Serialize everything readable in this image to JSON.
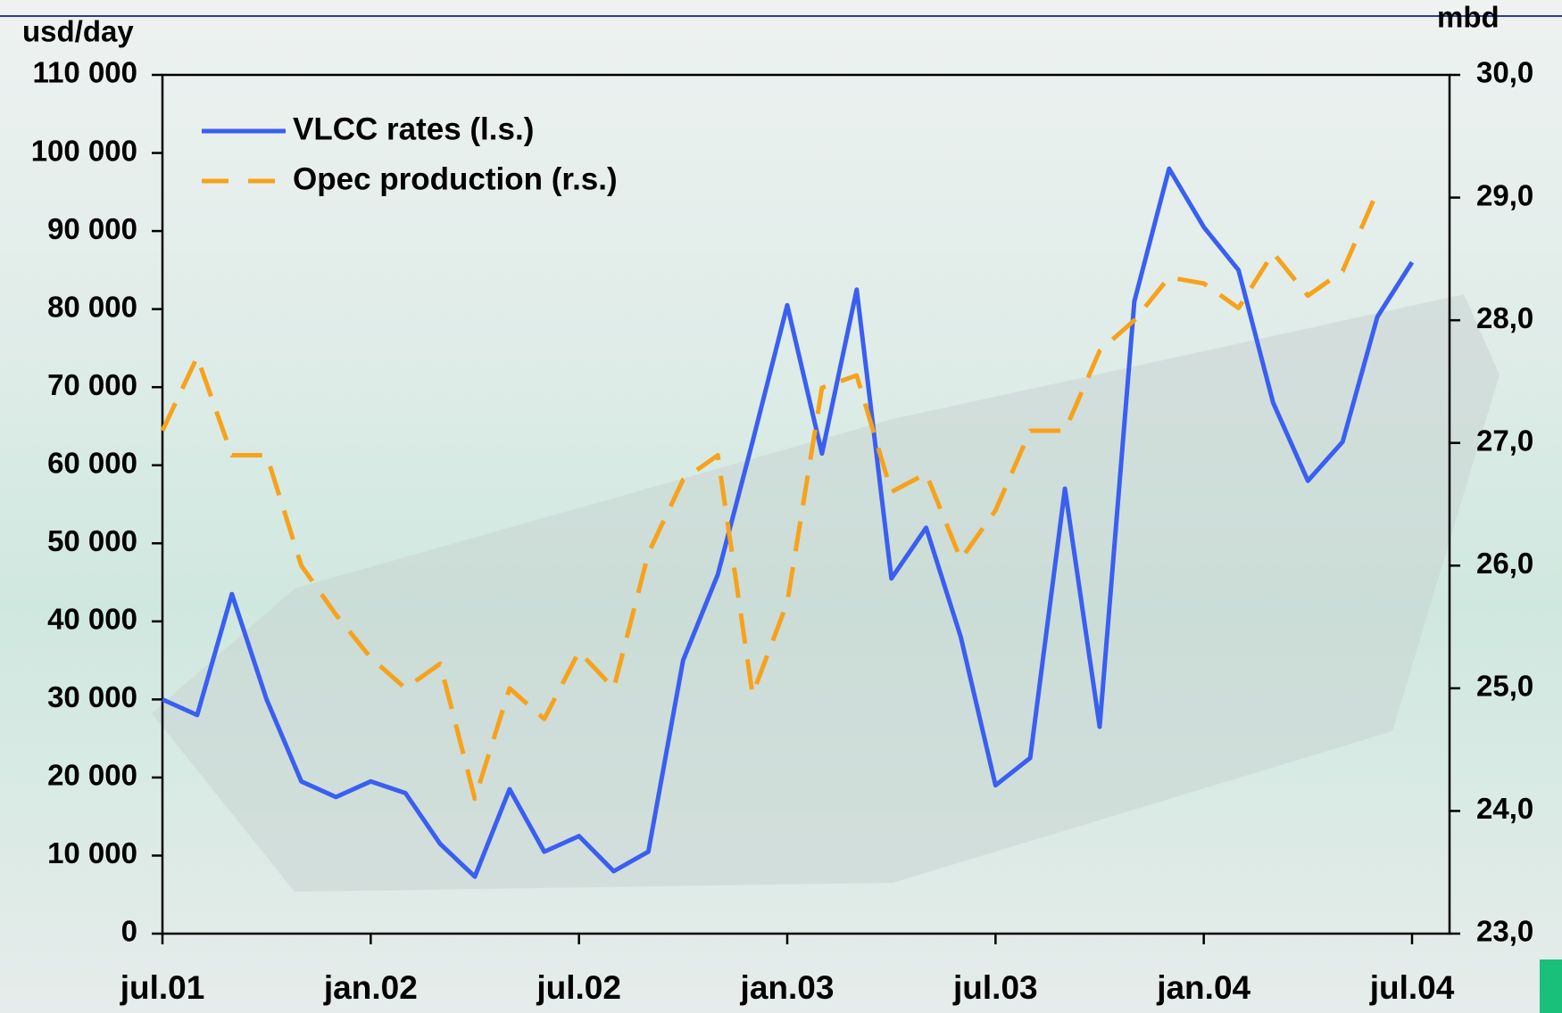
{
  "chart_data": {
    "type": "line",
    "y_label": "usd/day",
    "y2_label": "mbd",
    "categories": [
      "jul.01",
      null,
      null,
      null,
      null,
      null,
      "jan.02",
      null,
      null,
      null,
      null,
      null,
      "jul.02",
      null,
      null,
      null,
      null,
      null,
      "jan.03",
      null,
      null,
      null,
      null,
      null,
      "jul.03",
      null,
      null,
      null,
      null,
      null,
      "jan.04",
      null,
      null,
      null,
      null,
      null,
      "jul.04"
    ],
    "series": [
      {
        "name": "VLCC rates (l.s.)",
        "color": "#3a5ff0",
        "dash": false,
        "values": [
          30000,
          28000,
          43500,
          30000,
          19500,
          17500,
          19500,
          18000,
          11500,
          7300,
          18500,
          10500,
          12500,
          8000,
          10500,
          35000,
          46000,
          63000,
          80500,
          61500,
          82500,
          45500,
          52000,
          38000,
          19000,
          22500,
          57000,
          26500,
          81000,
          98000,
          90500,
          85000,
          68000,
          58000,
          63000,
          79000,
          86000
        ]
      },
      {
        "name": "Opec production (r.s.)",
        "color": "#f7a21b",
        "dash": true,
        "axis": "y2",
        "values": [
          27.1,
          27.7,
          26.9,
          26.9,
          26.0,
          25.6,
          25.25,
          25.0,
          25.2,
          24.1,
          25.0,
          24.75,
          25.3,
          25.0,
          26.1,
          26.7,
          26.9,
          24.95,
          25.7,
          27.45,
          27.55,
          26.6,
          26.75,
          26.05,
          26.45,
          27.1,
          27.1,
          27.75,
          28.0,
          28.35,
          28.3,
          28.1,
          28.55,
          28.2,
          28.4,
          29.05,
          null
        ]
      }
    ],
    "ylim": [
      0,
      110000
    ],
    "yticks": [
      0,
      {
        "value": 10000,
        "label": "10 000"
      },
      {
        "value": 20000,
        "label": "20 000"
      },
      {
        "value": 30000,
        "label": "30 000"
      },
      {
        "value": 40000,
        "label": "40 000"
      },
      {
        "value": 50000,
        "label": "50 000"
      },
      {
        "value": 60000,
        "label": "60 000"
      },
      {
        "value": 70000,
        "label": "70 000"
      },
      {
        "value": 80000,
        "label": "80 000"
      },
      {
        "value": 90000,
        "label": "90 000"
      },
      {
        "value": 100000,
        "label": "100 000"
      },
      {
        "value": 110000,
        "label": "110 000"
      }
    ],
    "y2lim": [
      23,
      30
    ],
    "y2ticks": [
      {
        "value": 23,
        "label": "23,0"
      },
      {
        "value": 24,
        "label": "24,0"
      },
      {
        "value": 25,
        "label": "25,0"
      },
      {
        "value": 26,
        "label": "26,0"
      },
      {
        "value": 27,
        "label": "27,0"
      },
      {
        "value": 28,
        "label": "28,0"
      },
      {
        "value": 29,
        "label": "29,0"
      },
      {
        "value": 30,
        "label": "30,0"
      }
    ],
    "legend": "upper left"
  }
}
